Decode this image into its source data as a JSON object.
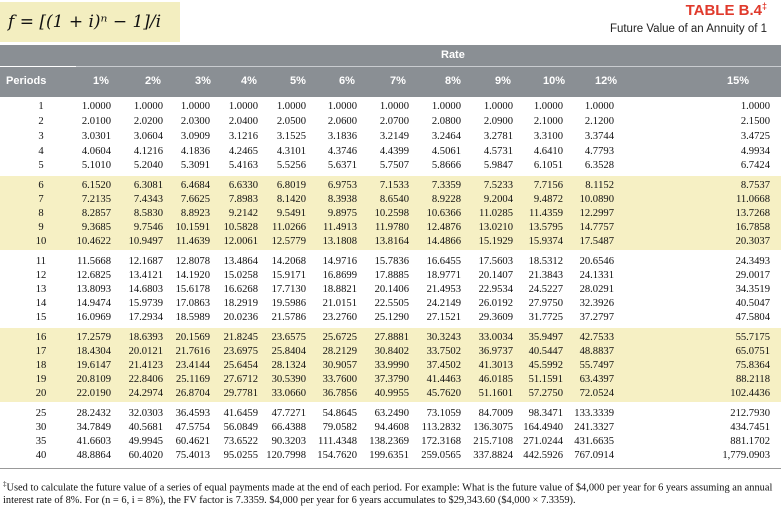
{
  "formula": "f = [(1 + i)ⁿ − 1]/i",
  "table_title": "TABLE B.4",
  "table_title_mark": "‡",
  "table_subtitle": "Future Value of an Annuity of 1",
  "rate_label": "Rate",
  "periods_label": "Periods",
  "rates": [
    "1%",
    "2%",
    "3%",
    "4%",
    "5%",
    "6%",
    "7%",
    "8%",
    "9%",
    "10%",
    "12%",
    "15%"
  ],
  "rows": [
    {
      "period": "1",
      "values": [
        "1.0000",
        "1.0000",
        "1.0000",
        "1.0000",
        "1.0000",
        "1.0000",
        "1.0000",
        "1.0000",
        "1.0000",
        "1.0000",
        "1.0000",
        "1.0000"
      ]
    },
    {
      "period": "2",
      "values": [
        "2.0100",
        "2.0200",
        "2.0300",
        "2.0400",
        "2.0500",
        "2.0600",
        "2.0700",
        "2.0800",
        "2.0900",
        "2.1000",
        "2.1200",
        "2.1500"
      ]
    },
    {
      "period": "3",
      "values": [
        "3.0301",
        "3.0604",
        "3.0909",
        "3.1216",
        "3.1525",
        "3.1836",
        "3.2149",
        "3.2464",
        "3.2781",
        "3.3100",
        "3.3744",
        "3.4725"
      ]
    },
    {
      "period": "4",
      "values": [
        "4.0604",
        "4.1216",
        "4.1836",
        "4.2465",
        "4.3101",
        "4.3746",
        "4.4399",
        "4.5061",
        "4.5731",
        "4.6410",
        "4.7793",
        "4.9934"
      ]
    },
    {
      "period": "5",
      "values": [
        "5.1010",
        "5.2040",
        "5.3091",
        "5.4163",
        "5.5256",
        "5.6371",
        "5.7507",
        "5.8666",
        "5.9847",
        "6.1051",
        "6.3528",
        "6.7424"
      ]
    },
    {
      "period": "6",
      "values": [
        "6.1520",
        "6.3081",
        "6.4684",
        "6.6330",
        "6.8019",
        "6.9753",
        "7.1533",
        "7.3359",
        "7.5233",
        "7.7156",
        "8.1152",
        "8.7537"
      ]
    },
    {
      "period": "7",
      "values": [
        "7.2135",
        "7.4343",
        "7.6625",
        "7.8983",
        "8.1420",
        "8.3938",
        "8.6540",
        "8.9228",
        "9.2004",
        "9.4872",
        "10.0890",
        "11.0668"
      ]
    },
    {
      "period": "8",
      "values": [
        "8.2857",
        "8.5830",
        "8.8923",
        "9.2142",
        "9.5491",
        "9.8975",
        "10.2598",
        "10.6366",
        "11.0285",
        "11.4359",
        "12.2997",
        "13.7268"
      ]
    },
    {
      "period": "9",
      "values": [
        "9.3685",
        "9.7546",
        "10.1591",
        "10.5828",
        "11.0266",
        "11.4913",
        "11.9780",
        "12.4876",
        "13.0210",
        "13.5795",
        "14.7757",
        "16.7858"
      ]
    },
    {
      "period": "10",
      "values": [
        "10.4622",
        "10.9497",
        "11.4639",
        "12.0061",
        "12.5779",
        "13.1808",
        "13.8164",
        "14.4866",
        "15.1929",
        "15.9374",
        "17.5487",
        "20.3037"
      ]
    },
    {
      "period": "11",
      "values": [
        "11.5668",
        "12.1687",
        "12.8078",
        "13.4864",
        "14.2068",
        "14.9716",
        "15.7836",
        "16.6455",
        "17.5603",
        "18.5312",
        "20.6546",
        "24.3493"
      ]
    },
    {
      "period": "12",
      "values": [
        "12.6825",
        "13.4121",
        "14.1920",
        "15.0258",
        "15.9171",
        "16.8699",
        "17.8885",
        "18.9771",
        "20.1407",
        "21.3843",
        "24.1331",
        "29.0017"
      ]
    },
    {
      "period": "13",
      "values": [
        "13.8093",
        "14.6803",
        "15.6178",
        "16.6268",
        "17.7130",
        "18.8821",
        "20.1406",
        "21.4953",
        "22.9534",
        "24.5227",
        "28.0291",
        "34.3519"
      ]
    },
    {
      "period": "14",
      "values": [
        "14.9474",
        "15.9739",
        "17.0863",
        "18.2919",
        "19.5986",
        "21.0151",
        "22.5505",
        "24.2149",
        "26.0192",
        "27.9750",
        "32.3926",
        "40.5047"
      ]
    },
    {
      "period": "15",
      "values": [
        "16.0969",
        "17.2934",
        "18.5989",
        "20.0236",
        "21.5786",
        "23.2760",
        "25.1290",
        "27.1521",
        "29.3609",
        "31.7725",
        "37.2797",
        "47.5804"
      ]
    },
    {
      "period": "16",
      "values": [
        "17.2579",
        "18.6393",
        "20.1569",
        "21.8245",
        "23.6575",
        "25.6725",
        "27.8881",
        "30.3243",
        "33.0034",
        "35.9497",
        "42.7533",
        "55.7175"
      ]
    },
    {
      "period": "17",
      "values": [
        "18.4304",
        "20.0121",
        "21.7616",
        "23.6975",
        "25.8404",
        "28.2129",
        "30.8402",
        "33.7502",
        "36.9737",
        "40.5447",
        "48.8837",
        "65.0751"
      ]
    },
    {
      "period": "18",
      "values": [
        "19.6147",
        "21.4123",
        "23.4144",
        "25.6454",
        "28.1324",
        "30.9057",
        "33.9990",
        "37.4502",
        "41.3013",
        "45.5992",
        "55.7497",
        "75.8364"
      ]
    },
    {
      "period": "19",
      "values": [
        "20.8109",
        "22.8406",
        "25.1169",
        "27.6712",
        "30.5390",
        "33.7600",
        "37.3790",
        "41.4463",
        "46.0185",
        "51.1591",
        "63.4397",
        "88.2118"
      ]
    },
    {
      "period": "20",
      "values": [
        "22.0190",
        "24.2974",
        "26.8704",
        "29.7781",
        "33.0660",
        "36.7856",
        "40.9955",
        "45.7620",
        "51.1601",
        "57.2750",
        "72.0524",
        "102.4436"
      ]
    },
    {
      "period": "25",
      "values": [
        "28.2432",
        "32.0303",
        "36.4593",
        "41.6459",
        "47.7271",
        "54.8645",
        "63.2490",
        "73.1059",
        "84.7009",
        "98.3471",
        "133.3339",
        "212.7930"
      ]
    },
    {
      "period": "30",
      "values": [
        "34.7849",
        "40.5681",
        "47.5754",
        "56.0849",
        "66.4388",
        "79.0582",
        "94.4608",
        "113.2832",
        "136.3075",
        "164.4940",
        "241.3327",
        "434.7451"
      ]
    },
    {
      "period": "35",
      "values": [
        "41.6603",
        "49.9945",
        "60.4621",
        "73.6522",
        "90.3203",
        "111.4348",
        "138.2369",
        "172.3168",
        "215.7108",
        "271.0244",
        "431.6635",
        "881.1702"
      ]
    },
    {
      "period": "40",
      "values": [
        "48.8864",
        "60.4020",
        "75.4013",
        "95.0255",
        "120.7998",
        "154.7620",
        "199.6351",
        "259.0565",
        "337.8824",
        "442.5926",
        "767.0914",
        "1,779.0903"
      ]
    }
  ],
  "footnote_mark": "‡",
  "footnote": "Used to calculate the future value of a series of equal payments made at the end of each period. For example: What is the future value of $4,000 per year for 6 years assuming an annual interest rate of 8%. For (n = 6, i = 8%), the FV factor is 7.3359. $4,000 per year for 6 years accumulates to $29,343.60 ($4,000 × 7.3359)."
}
